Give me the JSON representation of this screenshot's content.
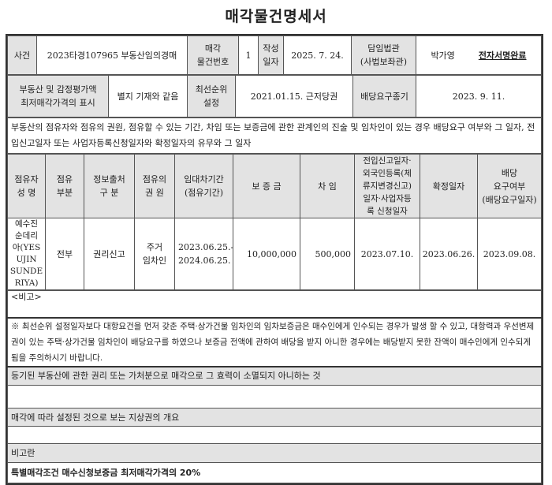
{
  "title": "매각물건명세서",
  "header": {
    "case_label": "사건",
    "case_value": "2023타경107965 부동산임의경매",
    "item_no_label": "매각\n물건번호",
    "item_no": "1",
    "written_label": "작성\n일자",
    "written_date": "2025. 7. 24.",
    "judge_label": "담임법관\n(사법보좌관)",
    "judge_name": "박가영",
    "signature": "전자서명완료",
    "property_label": "부동산 및 감정평가액\n최저매각가격의 표시",
    "property_value": "별지 기재와 같음",
    "priority_label": "최선순위\n설정",
    "priority_value": "2021.01.15. 근저당권",
    "deadline_label": "배당요구종기",
    "deadline_value": "2023. 9. 11."
  },
  "occupancy_intro": "부동산의 점유자와 점유의 권원, 점유할 수 있는 기간, 차임 또는 보증금에 관한 관계인의 진술 및 임차인이 있는 경우 배당요구 여부와 그 일자, 전입신고일자 또는 사업자등록신청일자와 확정일자의 유무와 그 일자",
  "table": {
    "columns": [
      "점유자\n성 명",
      "점유\n부분",
      "정보출처\n구 분",
      "점유의\n권 원",
      "임대차기간\n(점유기간)",
      "보 증 금",
      "차 임",
      "전입신고일자·\n외국인등록(체\n류지변경신고)\n일자·사업자등\n록 신청일자",
      "확정일자",
      "배당\n요구여부\n(배당요구일자)"
    ],
    "rows": [
      [
        "예수진\n순데리\n아(YES\nUJIN\nSUNDE\nRIYA)",
        "전부",
        "권리신고",
        "주거\n임차인",
        "2023.06.25.-\n2024.06.25.",
        "10,000,000",
        "500,000",
        "2023.07.10.",
        "2023.06.26.",
        "2023.09.08."
      ]
    ]
  },
  "remarks_label": "<비고>",
  "notice": "※ 최선순위 설정일자보다 대항요건을 먼저 갖춘 주택·상가건물 임차인의 임차보증금은 매수인에게 인수되는 경우가 발생 할 수 있고, 대항력과 우선변제권이 있는 주택·상가건물 임차인이 배당요구를 하였으나 보증금 전액에 관하여 배당을 받지 아니한 경우에는 배당받지 못한 잔액이 매수인에게 인수되게 됨을 주의하시기 바랍니다.",
  "section1_label": "등기된 부동산에 관한 권리 또는 가처분으로 매각으로 그 효력이 소멸되지 아니하는 것",
  "section2_label": "매각에 따라 설정된 것으로 보는 지상권의 개요",
  "section3_label": "비고란",
  "section3_value": "특별매각조건 매수신청보증금 최저매각가격의 20%"
}
